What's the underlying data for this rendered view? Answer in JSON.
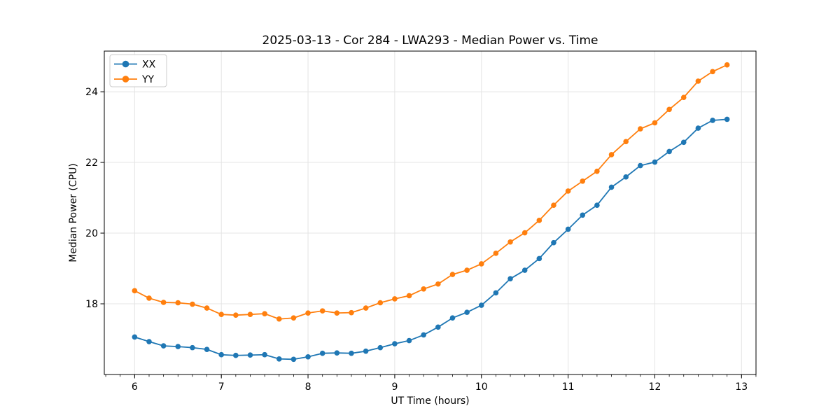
{
  "figure": {
    "background": "#ffffff"
  },
  "style": {
    "grid_color": "#e4e4e4",
    "spine_color": "#000000",
    "tick_color": "#000000",
    "text_color": "#000000",
    "legend_border_color": "#cccccc",
    "legend_fill": "#ffffff"
  },
  "chart_data": {
    "type": "line",
    "title": "2025-03-13 - Cor 284 - LWA293 - Median Power vs. Time",
    "xlabel": "UT Time (hours)",
    "ylabel": "Median Power (CPU)",
    "grid": true,
    "legend": {
      "position": "upper left",
      "entries": [
        "XX",
        "YY"
      ]
    },
    "marker": "circle",
    "xlim": [
      5.65,
      13.167
    ],
    "ylim": [
      16.0,
      25.15
    ],
    "x_ticks": [
      6,
      7,
      8,
      9,
      10,
      11,
      12,
      13
    ],
    "y_ticks": [
      18,
      20,
      22,
      24
    ],
    "x_minor_step": 0.1666667,
    "x": [
      6.0,
      6.1667,
      6.3333,
      6.5,
      6.6667,
      6.8333,
      7.0,
      7.1667,
      7.3333,
      7.5,
      7.6667,
      7.8333,
      8.0,
      8.1667,
      8.3333,
      8.5,
      8.6667,
      8.8333,
      9.0,
      9.1667,
      9.3333,
      9.5,
      9.6667,
      9.8333,
      10.0,
      10.1667,
      10.3333,
      10.5,
      10.6667,
      10.8333,
      11.0,
      11.1667,
      11.3333,
      11.5,
      11.6667,
      11.8333,
      12.0,
      12.1667,
      12.3333,
      12.5,
      12.6667,
      12.8333
    ],
    "series": [
      {
        "name": "XX",
        "color": "#1f77b4",
        "values": [
          17.06,
          16.93,
          16.81,
          16.79,
          16.76,
          16.71,
          16.56,
          16.54,
          16.55,
          16.56,
          16.44,
          16.43,
          16.5,
          16.6,
          16.61,
          16.6,
          16.66,
          16.76,
          16.87,
          16.96,
          17.12,
          17.34,
          17.6,
          17.76,
          17.96,
          18.31,
          18.71,
          18.95,
          19.28,
          19.73,
          20.11,
          20.51,
          20.79,
          21.3,
          21.59,
          21.91,
          22.01,
          22.31,
          22.57,
          22.97,
          23.19,
          23.22
        ]
      },
      {
        "name": "YY",
        "color": "#ff7f0e",
        "values": [
          18.37,
          18.16,
          18.04,
          18.03,
          17.99,
          17.88,
          17.7,
          17.68,
          17.7,
          17.72,
          17.57,
          17.6,
          17.74,
          17.8,
          17.74,
          17.75,
          17.88,
          18.03,
          18.14,
          18.23,
          18.42,
          18.56,
          18.83,
          18.95,
          19.13,
          19.43,
          19.75,
          20.01,
          20.36,
          20.79,
          21.19,
          21.47,
          21.75,
          22.22,
          22.59,
          22.95,
          23.12,
          23.5,
          23.84,
          24.3,
          24.57,
          24.76
        ]
      }
    ]
  }
}
